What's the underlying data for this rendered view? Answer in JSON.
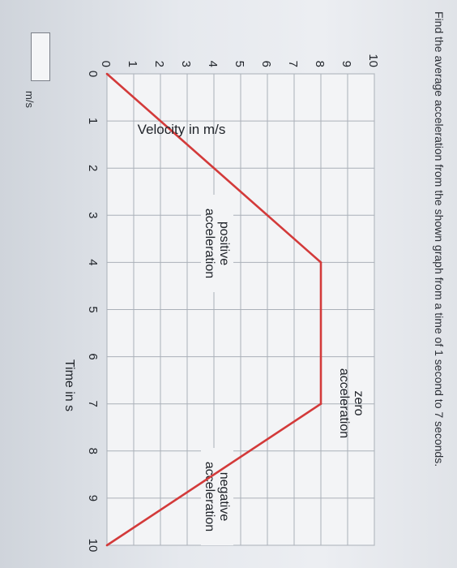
{
  "question": {
    "text": "Find the average acceleration from the shown graph from a time of 1 second to 7 seconds."
  },
  "answer": {
    "value": "",
    "unit": "m/s"
  },
  "chart_data": {
    "type": "line",
    "title": "",
    "ylabel": "Velocity in m/s",
    "xlabel": "Time in s",
    "xlim": [
      0,
      10
    ],
    "ylim": [
      0,
      10
    ],
    "xticks": [
      "0",
      "1",
      "2",
      "3",
      "4",
      "5",
      "6",
      "7",
      "8",
      "9",
      "10"
    ],
    "yticks": [
      "0",
      "1",
      "2",
      "3",
      "4",
      "5",
      "6",
      "7",
      "8",
      "9",
      "10"
    ],
    "grid": true,
    "line_color": "#d33a3a",
    "x": [
      0,
      4,
      7,
      10
    ],
    "y": [
      0,
      8,
      8,
      0
    ],
    "annotations": [
      {
        "label": [
          "positive",
          "acceleration"
        ]
      },
      {
        "label": [
          "zero",
          "acceleration"
        ]
      },
      {
        "label": [
          "negative",
          "acceleration"
        ]
      }
    ]
  }
}
